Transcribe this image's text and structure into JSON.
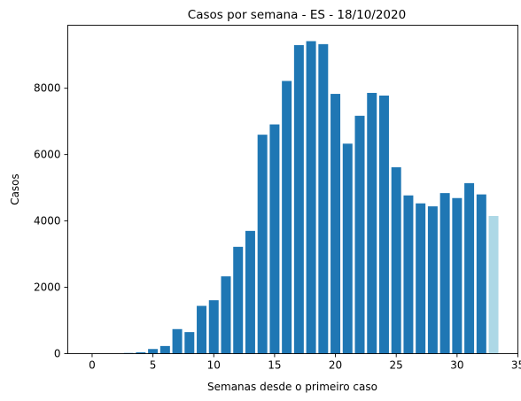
{
  "chart_data": {
    "type": "bar",
    "title": "Casos por semana - ES - 18/10/2020",
    "xlabel": "Semanas desde o primeiro caso",
    "ylabel": "Casos",
    "xlim": [
      -2,
      35
    ],
    "ylim": [
      0,
      9900
    ],
    "xticks": [
      0,
      5,
      10,
      15,
      20,
      25,
      30,
      35
    ],
    "yticks": [
      0,
      2000,
      4000,
      6000,
      8000
    ],
    "grid": false,
    "colors": {
      "bar": "#1f77b4",
      "last_bar": "#add8e6"
    },
    "x": [
      0,
      1,
      2,
      3,
      4,
      5,
      6,
      7,
      8,
      9,
      10,
      11,
      12,
      13,
      14,
      15,
      16,
      17,
      18,
      19,
      20,
      21,
      22,
      23,
      24,
      25,
      26,
      27,
      28,
      29,
      30,
      31,
      32,
      33
    ],
    "values": [
      0,
      0,
      0,
      20,
      40,
      140,
      230,
      740,
      650,
      1440,
      1610,
      2330,
      3220,
      3700,
      6600,
      6910,
      8220,
      9300,
      9420,
      9330,
      7830,
      6330,
      7170,
      7860,
      7780,
      5620,
      4770,
      4530,
      4440,
      4840,
      4690,
      5140,
      4800,
      4150
    ]
  }
}
